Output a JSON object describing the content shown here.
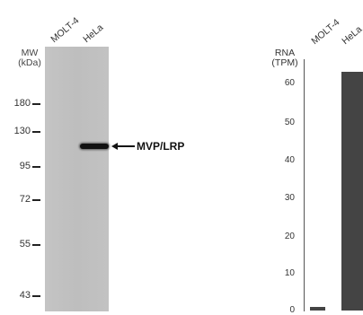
{
  "western_blot": {
    "lanes": [
      "MOLT-4",
      "HeLa"
    ],
    "mw_title": [
      "MW",
      "(kDa)"
    ],
    "markers": [
      "180",
      "130",
      "95",
      "72",
      "55",
      "43"
    ],
    "protein_label": "MVP/LRP"
  },
  "rna_panel": {
    "title": [
      "RNA",
      "(TPM)"
    ],
    "lanes": [
      "MOLT-4",
      "HeLa"
    ],
    "ticks": [
      "60",
      "50",
      "40",
      "30",
      "20",
      "10",
      "0"
    ]
  },
  "chart_data": {
    "type": "bar",
    "categories": [
      "MOLT-4",
      "HeLa"
    ],
    "values": [
      1,
      63
    ],
    "ylabel": "RNA (TPM)",
    "ylim": [
      0,
      70
    ],
    "yticks": [
      0,
      10,
      20,
      30,
      40,
      50,
      60
    ],
    "colors": [
      "#444444",
      "#444444"
    ]
  }
}
